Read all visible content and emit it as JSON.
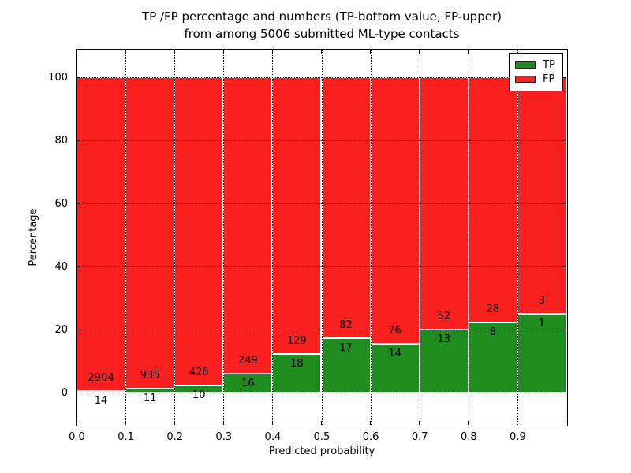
{
  "title": {
    "line1": "TP /FP percentage and numbers (TP-bottom value, FP-upper)",
    "line2": "from among 5006 submitted ML-type contacts"
  },
  "chart_data": {
    "type": "bar",
    "mode": "stacked-percent",
    "title": "TP /FP percentage and numbers (TP-bottom value, FP-upper)\nfrom among 5006 submitted ML-type contacts",
    "xlabel": "Predicted probability",
    "ylabel": "Percentage",
    "total_contacts": 5006,
    "bin_edges": [
      0.0,
      0.1,
      0.2,
      0.3,
      0.4,
      0.5,
      0.6,
      0.7,
      0.8,
      0.9,
      1.0
    ],
    "x_tick_labels": [
      "0.0",
      "0.1",
      "0.2",
      "0.3",
      "0.4",
      "0.5",
      "0.6",
      "0.7",
      "0.8",
      "0.9"
    ],
    "y_tick_values": [
      0,
      20,
      40,
      60,
      80,
      100
    ],
    "y_tick_labels": [
      "0",
      "20",
      "40",
      "60",
      "80",
      "100"
    ],
    "xlim": [
      0.0,
      1.0
    ],
    "ylim": [
      -10.6,
      109.1
    ],
    "grid": {
      "visible": true,
      "style": "dotted",
      "color": "#000000"
    },
    "series": [
      {
        "name": "TP",
        "color": "#1f8c1f",
        "counts": [
          14,
          11,
          10,
          16,
          18,
          17,
          14,
          13,
          8,
          1
        ]
      },
      {
        "name": "FP",
        "color": "#fa2020",
        "counts": [
          2904,
          935,
          426,
          249,
          129,
          82,
          76,
          52,
          28,
          3
        ]
      }
    ],
    "legend": {
      "position": "upper-right",
      "entries": [
        {
          "label": "TP",
          "color": "#1f8c1f"
        },
        {
          "label": "FP",
          "color": "#fa2020"
        }
      ]
    }
  }
}
